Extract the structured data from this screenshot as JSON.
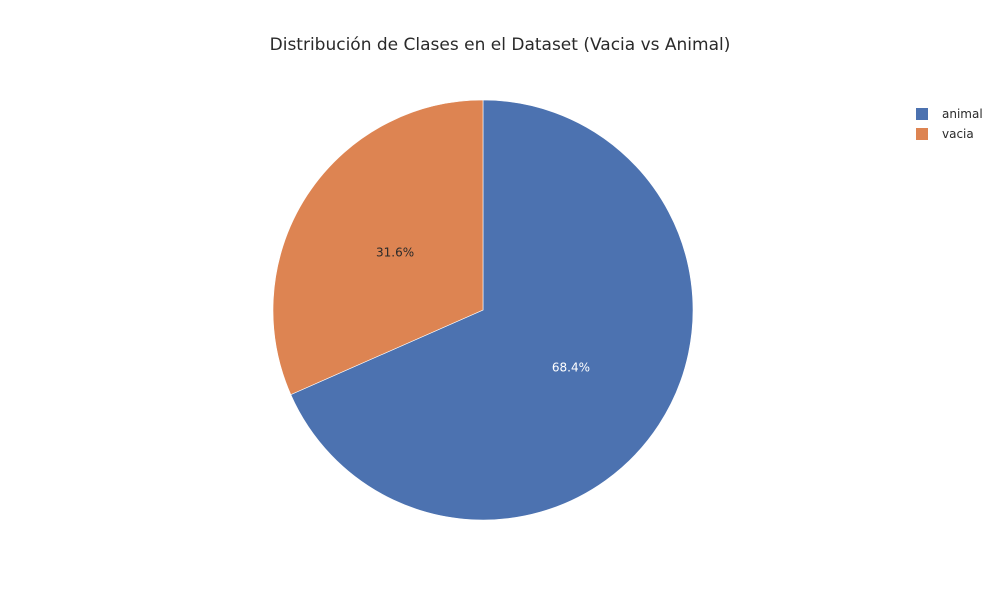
{
  "chart_data": {
    "type": "pie",
    "title": "Distribución de Clases en el Dataset (Vacia vs Animal)",
    "slices": [
      {
        "label": "animal",
        "value": 68.4,
        "text": "68.4%",
        "color": "#4c72b0",
        "label_color": "#ffffff"
      },
      {
        "label": "vacia",
        "value": 31.6,
        "text": "31.6%",
        "color": "#dd8452",
        "label_color": "#2a2a2a"
      }
    ],
    "legend": {
      "position": "top-right",
      "entries": [
        "animal",
        "vacia"
      ]
    }
  }
}
